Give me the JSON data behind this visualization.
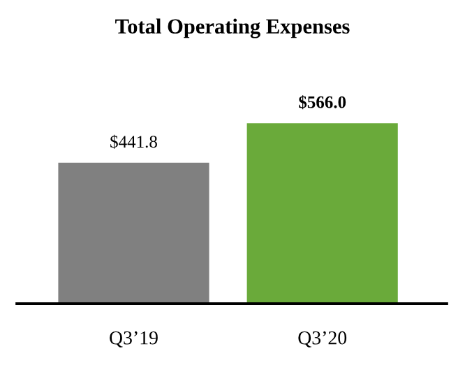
{
  "chart_data": {
    "type": "bar",
    "title": "Total Operating Expenses",
    "categories": [
      "Q3’19",
      "Q3’20"
    ],
    "values": [
      441.8,
      566.0
    ],
    "colors": [
      "#808080",
      "#6aaa3a"
    ],
    "value_labels": [
      "$441.8",
      "$566.0"
    ],
    "grid": false,
    "legend": false
  }
}
